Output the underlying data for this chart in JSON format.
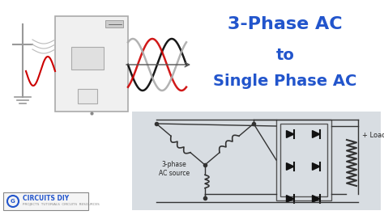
{
  "bg_color": "#ffffff",
  "title_line1": "3-Phase AC",
  "title_line2": "to",
  "title_line3": "Single Phase AC",
  "title_color": "#2255cc",
  "title_fontsize": 16,
  "circuit_bg": "#d8dde2",
  "label_3phase": "3-phase\nAC source",
  "label_load": "+ Load",
  "logo_text": "CIRCUITS DIY",
  "wave_colors_right": [
    "#000000",
    "#cc0000",
    "#aaaaaa"
  ],
  "wave_colors_left": [
    "#cc0000"
  ],
  "pole_color": "#888888",
  "box_color": "#f0f0f0",
  "box_edge": "#aaaaaa",
  "diode_color": "#111111",
  "wire_color": "#333333"
}
